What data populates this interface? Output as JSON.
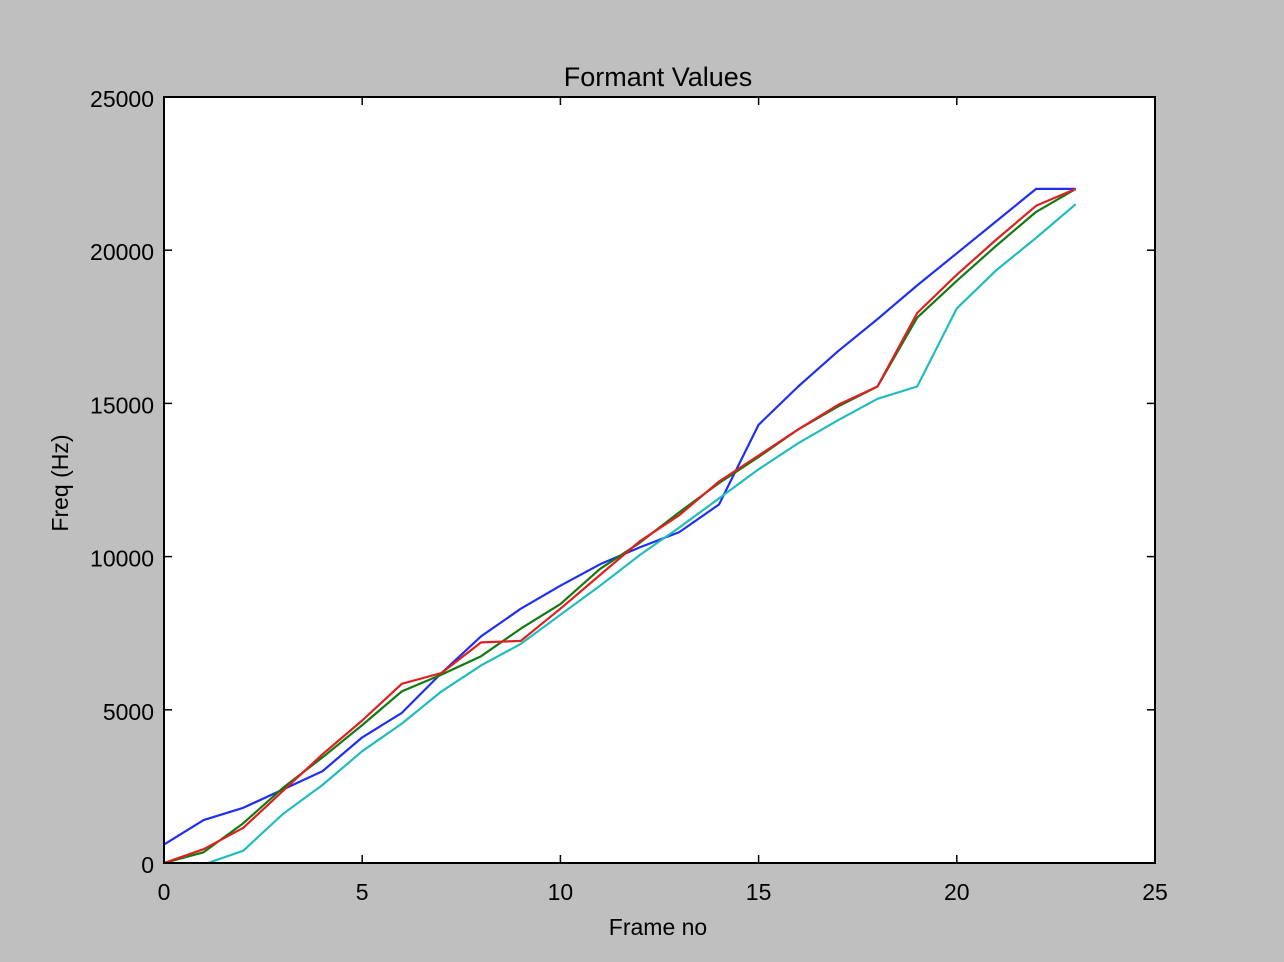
{
  "chart_data": {
    "type": "line",
    "title": "Formant Values",
    "xlabel": "Frame no",
    "ylabel": "Freq (Hz)",
    "xlim": [
      0,
      25
    ],
    "ylim": [
      0,
      25000
    ],
    "xticks": [
      0,
      5,
      10,
      15,
      20,
      25
    ],
    "yticks": [
      0,
      5000,
      10000,
      15000,
      20000,
      25000
    ],
    "xtick_labels": [
      "0",
      "5",
      "10",
      "15",
      "20",
      "25"
    ],
    "ytick_labels": [
      "0",
      "5000",
      "10000",
      "15000",
      "20000",
      "25000"
    ],
    "grid": false,
    "legend": null,
    "x": [
      0,
      1,
      2,
      3,
      4,
      5,
      6,
      7,
      8,
      9,
      10,
      11,
      12,
      13,
      14,
      15,
      16,
      17,
      18,
      19,
      20,
      21,
      22,
      23
    ],
    "series": [
      {
        "color": "#1f2ff0",
        "values": [
          600,
          1400,
          1800,
          2400,
          3000,
          4100,
          4900,
          6200,
          7400,
          8300,
          9050,
          9750,
          10300,
          10800,
          11700,
          14300,
          15550,
          16700,
          17750,
          18850,
          19900,
          20950,
          22000,
          22000
        ]
      },
      {
        "color": "#127a12",
        "values": [
          0,
          350,
          1300,
          2450,
          3450,
          4500,
          5600,
          6150,
          6750,
          7650,
          8450,
          9600,
          10450,
          11450,
          12400,
          13250,
          14150,
          14900,
          15550,
          17800,
          19000,
          20150,
          21250,
          22000
        ]
      },
      {
        "color": "#e02020",
        "values": [
          0,
          450,
          1150,
          2350,
          3550,
          4650,
          5850,
          6200,
          7200,
          7250,
          8300,
          9400,
          10500,
          11350,
          12450,
          13300,
          14150,
          14950,
          15550,
          17950,
          19200,
          20350,
          21450,
          22000
        ]
      },
      {
        "color": "#22bcbc",
        "values": [
          -300,
          -50,
          400,
          1600,
          2550,
          3650,
          4550,
          5600,
          6450,
          7150,
          8100,
          9050,
          10050,
          10950,
          11900,
          12850,
          13700,
          14450,
          15150,
          15550,
          18100,
          19350,
          20400,
          21500
        ]
      }
    ]
  }
}
